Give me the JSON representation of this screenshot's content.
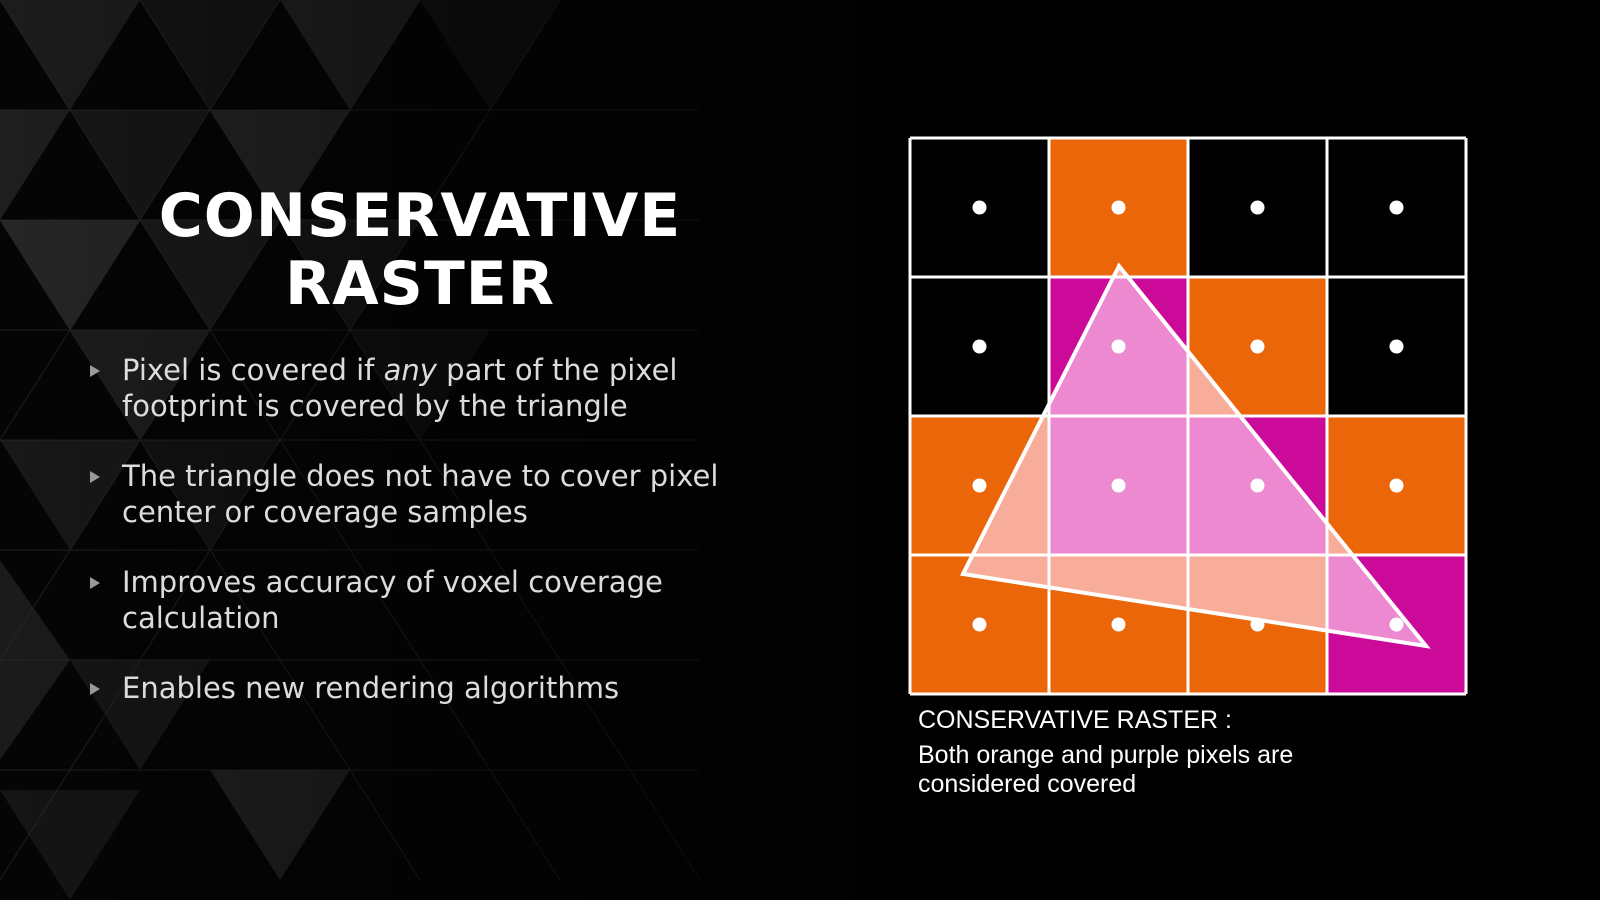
{
  "title": {
    "line1": "CONSERVATIVE",
    "line2": "RASTER"
  },
  "bullets": [
    {
      "pre": "Pixel is covered if ",
      "em": "any",
      "post": " part of the pixel footprint is covered by the triangle"
    },
    {
      "pre": "The triangle does not have to cover pixel center or coverage samples",
      "em": "",
      "post": ""
    },
    {
      "pre": "Improves accuracy of voxel coverage calculation",
      "em": "",
      "post": ""
    },
    {
      "pre": "Enables new rendering algorithms",
      "em": "",
      "post": ""
    }
  ],
  "diagram": {
    "rows": 4,
    "cols": 4,
    "cells": [
      [
        "black",
        "orange",
        "black",
        "black"
      ],
      [
        "black",
        "purple",
        "orange",
        "black"
      ],
      [
        "orange",
        "purple",
        "purple",
        "orange"
      ],
      [
        "orange",
        "orange",
        "orange",
        "purple"
      ]
    ],
    "colors": {
      "black": "#000000",
      "orange": "#ea6608",
      "purple": "#cc0a99",
      "grid": "#ffffff",
      "dot": "#ffffff",
      "triangle_fill": "#ffd8f2",
      "triangle_stroke": "#ffffff"
    }
  },
  "caption": {
    "title": "CONSERVATIVE RASTER :",
    "body": "Both orange and purple pixels are considered covered"
  }
}
